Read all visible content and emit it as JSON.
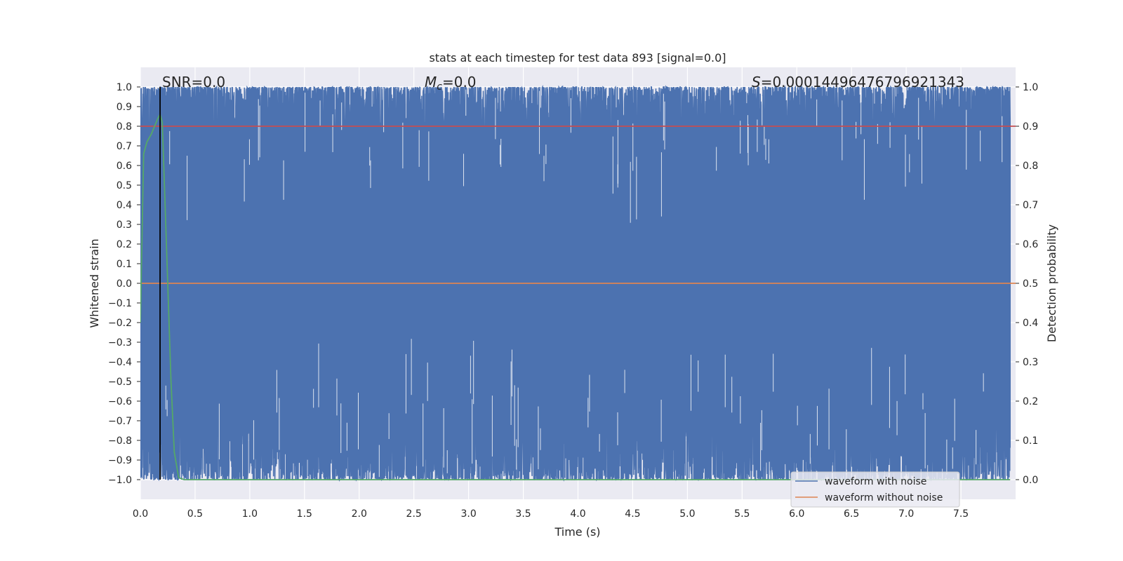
{
  "chart_data": {
    "type": "line",
    "title": "stats at each timestep for test data 893 [signal=0.0]",
    "xlabel": "Time (s)",
    "ylabel": "Whitened strain",
    "ylabel_right": "Detection probability",
    "xlim": [
      0.0,
      8.0
    ],
    "ylim": [
      -1.1,
      1.1
    ],
    "ylim_right": [
      -0.05,
      1.05
    ],
    "x_ticks": [
      0.0,
      0.5,
      1.0,
      1.5,
      2.0,
      2.5,
      3.0,
      3.5,
      4.0,
      4.5,
      5.0,
      5.5,
      6.0,
      6.5,
      7.0,
      7.5
    ],
    "x_tick_labels": [
      "0.0",
      "0.5",
      "1.0",
      "1.5",
      "2.0",
      "2.5",
      "3.0",
      "3.5",
      "4.0",
      "4.5",
      "5.0",
      "5.5",
      "6.0",
      "6.5",
      "7.0",
      "7.5"
    ],
    "y_ticks": [
      1.0,
      0.9,
      0.8,
      0.7,
      0.6,
      0.5,
      0.4,
      0.3,
      0.2,
      0.1,
      0.0,
      -0.1,
      -0.2,
      -0.3,
      -0.4,
      -0.5,
      -0.6,
      -0.7,
      -0.8,
      -0.9,
      -1.0
    ],
    "y_tick_labels": [
      "1.0",
      "0.9",
      "0.8",
      "0.7",
      "0.6",
      "0.5",
      "0.4",
      "0.3",
      "0.2",
      "0.1",
      "0.0",
      "−0.1",
      "−0.2",
      "−0.3",
      "−0.4",
      "−0.5",
      "−0.6",
      "−0.7",
      "−0.8",
      "−0.9",
      "−1.0"
    ],
    "y_right_ticks": [
      1.0,
      0.9,
      0.8,
      0.7,
      0.6,
      0.5,
      0.4,
      0.3,
      0.2,
      0.1,
      0.0
    ],
    "y_right_tick_labels": [
      "1.0",
      "0.9",
      "0.8",
      "0.7",
      "0.6",
      "0.5",
      "0.4",
      "0.3",
      "0.2",
      "0.1",
      "0.0"
    ],
    "grid": true,
    "annotations": {
      "snr": "SNR=0.0",
      "mc_symbol": "M",
      "mc_sub": "c",
      "mc_value": "=0.0",
      "s_symbol": "S",
      "s_value": "=0.0001449647679692134​3"
    },
    "legend_position": "lower-right",
    "series": [
      {
        "name": "waveform with noise",
        "color": "#4c72b0",
        "axis": "left",
        "style": "dense noise filling about -1.0 to 1.0 across 0 to 8 s"
      },
      {
        "name": "waveform without noise",
        "color": "#dd8452",
        "axis": "left",
        "x": [
          0.0,
          8.0
        ],
        "y": [
          0.0,
          0.0
        ]
      },
      {
        "color": "#55a868",
        "axis": "right",
        "x": [
          0.0,
          0.03,
          0.06,
          0.1,
          0.13,
          0.16,
          0.18,
          0.2,
          0.22,
          0.25,
          0.28,
          0.31,
          0.35,
          0.4,
          1.0,
          3.0,
          5.0,
          7.0,
          7.95
        ],
        "y": [
          0.4,
          0.83,
          0.86,
          0.88,
          0.9,
          0.92,
          0.93,
          0.91,
          0.75,
          0.5,
          0.25,
          0.07,
          0.005,
          0.0,
          0.0,
          0.0,
          0.0,
          0.0,
          0.0
        ]
      },
      {
        "color": "#c44e52",
        "axis": "right",
        "x": [
          0.0,
          8.0
        ],
        "y": [
          0.9,
          0.9
        ]
      }
    ],
    "vertical_markers": [
      0.18
    ],
    "marker_color": "#000000",
    "noise_min": -1.0,
    "noise_max": 1.0,
    "noise_seed": 893
  }
}
